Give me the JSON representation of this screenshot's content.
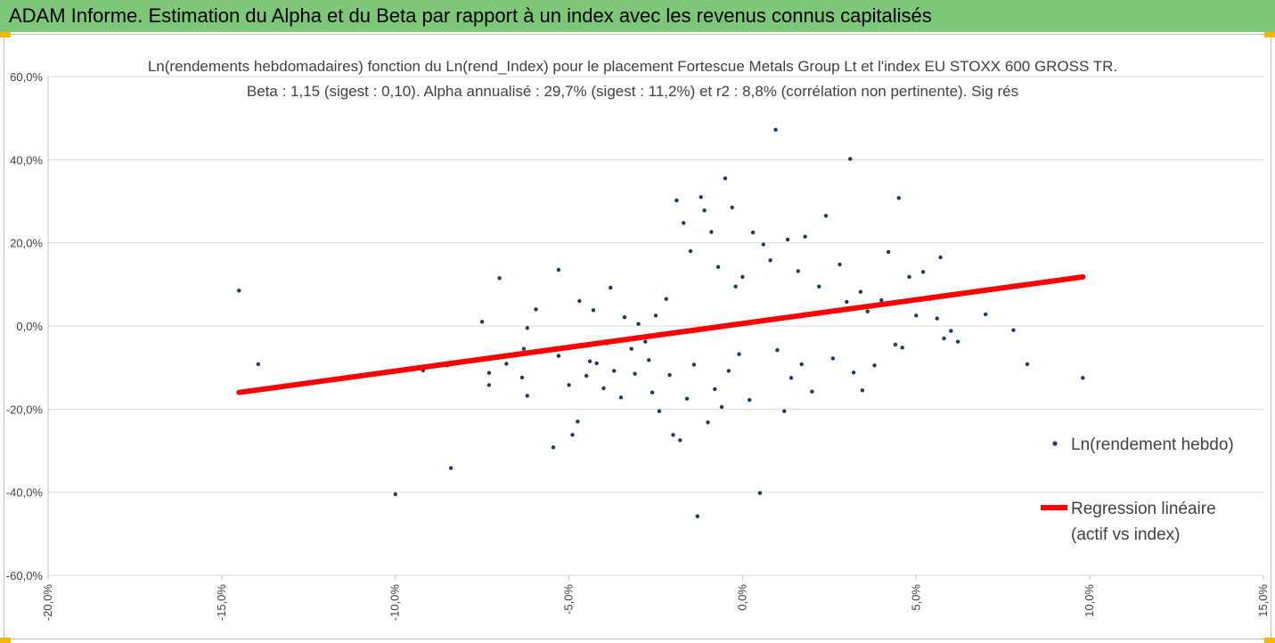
{
  "header": {
    "title": "ADAM Informe. Estimation du Alpha et du Beta par rapport à un index avec les revenus connus capitalisés"
  },
  "colors": {
    "banner": "#7dc67a",
    "points": "#1f3864",
    "regression": "#ff0000",
    "corner_marks": "#f5b800"
  },
  "chart_data": {
    "type": "scatter",
    "title": "Ln(rendements hebdomadaires) fonction du Ln(rend_Index) pour le placement Fortescue Metals Group Lt et l'index EU STOXX 600 GROSS TR.",
    "subtitle": "Beta : 1,15 (sigest : 0,10). Alpha annualisé : 29,7% (sigest : 11,2%) et r2 : 8,8% (corrélation non pertinente). Sig rés",
    "xlim": [
      -0.2,
      0.15
    ],
    "ylim": [
      -0.6,
      0.6
    ],
    "x_ticks": [
      "-20,0%",
      "-15,0%",
      "-10,0%",
      "-5,0%",
      "0,0%",
      "5,0%",
      "10,0%",
      "15,0%"
    ],
    "y_ticks": [
      "60,0%",
      "40,0%",
      "20,0%",
      "0,0%",
      "-20,0%",
      "-40,0%",
      "-60,0%"
    ],
    "grid": "horizontal",
    "legend_position": "right",
    "series": [
      {
        "name": "Ln(rendement hebdo)",
        "kind": "points",
        "points": [
          [
            -0.145,
            0.085
          ],
          [
            -0.1395,
            -0.092
          ],
          [
            -0.1,
            -0.405
          ],
          [
            -0.1005,
            -0.108
          ],
          [
            -0.092,
            -0.107
          ],
          [
            -0.084,
            -0.342
          ],
          [
            -0.085,
            -0.095
          ],
          [
            -0.075,
            0.01
          ],
          [
            -0.073,
            -0.113
          ],
          [
            -0.073,
            -0.142
          ],
          [
            -0.07,
            0.115
          ],
          [
            -0.0635,
            -0.124
          ],
          [
            -0.0595,
            0.04
          ],
          [
            -0.068,
            -0.091
          ],
          [
            -0.063,
            -0.055
          ],
          [
            -0.062,
            -0.005
          ],
          [
            -0.062,
            -0.168
          ],
          [
            -0.053,
            0.135
          ],
          [
            -0.0545,
            -0.292
          ],
          [
            -0.049,
            -0.262
          ],
          [
            -0.0475,
            -0.23
          ],
          [
            -0.053,
            -0.072
          ],
          [
            -0.058,
            -0.063
          ],
          [
            -0.05,
            -0.142
          ],
          [
            -0.047,
            0.06
          ],
          [
            -0.045,
            -0.12
          ],
          [
            -0.044,
            -0.085
          ],
          [
            -0.043,
            0.038
          ],
          [
            -0.042,
            -0.09
          ],
          [
            -0.04,
            -0.15
          ],
          [
            -0.039,
            -0.042
          ],
          [
            -0.038,
            0.092
          ],
          [
            -0.037,
            -0.108
          ],
          [
            -0.035,
            -0.172
          ],
          [
            -0.034,
            0.021
          ],
          [
            -0.032,
            -0.055
          ],
          [
            -0.031,
            -0.115
          ],
          [
            -0.03,
            0.005
          ],
          [
            -0.028,
            -0.038
          ],
          [
            -0.027,
            -0.082
          ],
          [
            -0.026,
            -0.16
          ],
          [
            -0.025,
            0.025
          ],
          [
            -0.024,
            -0.205
          ],
          [
            -0.022,
            0.065
          ],
          [
            -0.021,
            -0.118
          ],
          [
            -0.02,
            -0.262
          ],
          [
            -0.019,
            0.302
          ],
          [
            -0.018,
            -0.275
          ],
          [
            -0.017,
            0.248
          ],
          [
            -0.016,
            -0.175
          ],
          [
            -0.015,
            0.18
          ],
          [
            -0.014,
            -0.093
          ],
          [
            -0.012,
            0.31
          ],
          [
            -0.011,
            0.278
          ],
          [
            -0.01,
            -0.232
          ],
          [
            -0.009,
            0.226
          ],
          [
            -0.008,
            -0.152
          ],
          [
            -0.007,
            0.142
          ],
          [
            -0.006,
            -0.195
          ],
          [
            -0.005,
            0.355
          ],
          [
            -0.004,
            -0.108
          ],
          [
            -0.003,
            0.285
          ],
          [
            -0.002,
            0.095
          ],
          [
            -0.001,
            -0.068
          ],
          [
            0.0,
            0.118
          ],
          [
            0.002,
            -0.178
          ],
          [
            0.003,
            0.225
          ],
          [
            0.0095,
            0.472
          ],
          [
            0.005,
            -0.402
          ],
          [
            0.006,
            0.196
          ],
          [
            -0.013,
            -0.458
          ],
          [
            0.008,
            0.158
          ],
          [
            0.01,
            -0.058
          ],
          [
            0.012,
            -0.205
          ],
          [
            0.013,
            0.208
          ],
          [
            0.014,
            -0.125
          ],
          [
            0.016,
            0.132
          ],
          [
            0.017,
            -0.092
          ],
          [
            0.018,
            0.215
          ],
          [
            0.02,
            -0.158
          ],
          [
            0.022,
            0.095
          ],
          [
            0.024,
            0.265
          ],
          [
            0.026,
            -0.078
          ],
          [
            0.028,
            0.148
          ],
          [
            0.03,
            0.058
          ],
          [
            0.031,
            0.402
          ],
          [
            0.032,
            -0.112
          ],
          [
            0.034,
            0.082
          ],
          [
            0.0345,
            -0.155
          ],
          [
            0.036,
            0.035
          ],
          [
            0.038,
            -0.095
          ],
          [
            0.04,
            0.062
          ],
          [
            0.042,
            0.178
          ],
          [
            0.044,
            -0.045
          ],
          [
            0.045,
            0.308
          ],
          [
            0.046,
            -0.052
          ],
          [
            0.048,
            0.118
          ],
          [
            0.05,
            0.025
          ],
          [
            0.052,
            0.13
          ],
          [
            0.054,
            0.065
          ],
          [
            0.056,
            0.018
          ],
          [
            0.057,
            0.165
          ],
          [
            0.058,
            -0.03
          ],
          [
            0.06,
            -0.012
          ],
          [
            0.062,
            -0.038
          ],
          [
            0.064,
            0.078
          ],
          [
            0.07,
            0.028
          ],
          [
            0.078,
            -0.01
          ],
          [
            0.082,
            -0.092
          ],
          [
            0.098,
            -0.125
          ]
        ]
      },
      {
        "name": "Regression linéaire (actif vs index)",
        "kind": "line",
        "points": [
          [
            -0.145,
            -0.16
          ],
          [
            0.098,
            0.118
          ]
        ]
      }
    ]
  }
}
